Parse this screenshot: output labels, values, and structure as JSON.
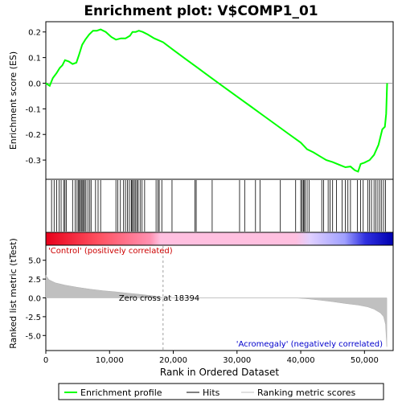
{
  "chart_data": {
    "type": "line",
    "title": "Enrichment plot: V$COMP1_01",
    "xlabel": "Rank in Ordered Dataset",
    "xlim": [
      0,
      54500
    ],
    "x_ticks": [
      0,
      10000,
      20000,
      30000,
      40000,
      50000
    ],
    "x_tick_labels": [
      "0",
      "10,000",
      "20,000",
      "30,000",
      "40,000",
      "50,000"
    ],
    "es_panel": {
      "ylabel": "Enrichment score (ES)",
      "ylim": [
        -0.375,
        0.24
      ],
      "y_ticks": [
        0.2,
        0.1,
        0.0,
        -0.1,
        -0.2,
        -0.3
      ],
      "y_tick_labels": [
        "0.2",
        "0.1",
        "0.0",
        "-0.1",
        "-0.2",
        "-0.3"
      ],
      "series_color": "#00ff00",
      "points": [
        [
          0,
          0
        ],
        [
          600,
          -0.01
        ],
        [
          1100,
          0.02
        ],
        [
          1700,
          0.04
        ],
        [
          2200,
          0.06
        ],
        [
          2600,
          0.07
        ],
        [
          3000,
          0.09
        ],
        [
          3600,
          0.085
        ],
        [
          4200,
          0.075
        ],
        [
          4800,
          0.08
        ],
        [
          5200,
          0.11
        ],
        [
          5700,
          0.15
        ],
        [
          6200,
          0.17
        ],
        [
          6800,
          0.19
        ],
        [
          7400,
          0.205
        ],
        [
          8000,
          0.205
        ],
        [
          8600,
          0.21
        ],
        [
          9400,
          0.2
        ],
        [
          10300,
          0.18
        ],
        [
          11000,
          0.17
        ],
        [
          11800,
          0.175
        ],
        [
          12500,
          0.175
        ],
        [
          13200,
          0.185
        ],
        [
          13600,
          0.2
        ],
        [
          14100,
          0.2
        ],
        [
          14600,
          0.205
        ],
        [
          15200,
          0.2
        ],
        [
          16000,
          0.19
        ],
        [
          17000,
          0.175
        ],
        [
          18394,
          0.16
        ],
        [
          20000,
          0.13
        ],
        [
          22000,
          0.093
        ],
        [
          24000,
          0.057
        ],
        [
          26000,
          0.02
        ],
        [
          28000,
          -0.016
        ],
        [
          30000,
          -0.052
        ],
        [
          32000,
          -0.088
        ],
        [
          34000,
          -0.124
        ],
        [
          36000,
          -0.16
        ],
        [
          38000,
          -0.196
        ],
        [
          40000,
          -0.232
        ],
        [
          41000,
          -0.258
        ],
        [
          42000,
          -0.27
        ],
        [
          43000,
          -0.285
        ],
        [
          44000,
          -0.3
        ],
        [
          45000,
          -0.308
        ],
        [
          46000,
          -0.318
        ],
        [
          47000,
          -0.328
        ],
        [
          47800,
          -0.325
        ],
        [
          48500,
          -0.34
        ],
        [
          49000,
          -0.345
        ],
        [
          49400,
          -0.315
        ],
        [
          50000,
          -0.31
        ],
        [
          50800,
          -0.3
        ],
        [
          51500,
          -0.28
        ],
        [
          52200,
          -0.24
        ],
        [
          52800,
          -0.18
        ],
        [
          53200,
          -0.17
        ],
        [
          53400,
          -0.12
        ],
        [
          53500,
          -0.04
        ],
        [
          53550,
          0
        ]
      ]
    },
    "hits_panel": {
      "hit_color": "#000000",
      "hit_positions": [
        900,
        1300,
        1700,
        2100,
        2400,
        2800,
        3000,
        3200,
        4200,
        4600,
        4900,
        5100,
        5300,
        5400,
        5600,
        5800,
        5900,
        6100,
        6300,
        6600,
        6900,
        7100,
        7800,
        8200,
        8600,
        11000,
        11300,
        11700,
        12200,
        12500,
        12800,
        13100,
        13400,
        13500,
        13700,
        13900,
        14100,
        14300,
        14500,
        14800,
        15100,
        15500,
        17300,
        17600,
        17800,
        18200,
        19800,
        23400,
        23600,
        26100,
        30400,
        31200,
        32900,
        33600,
        36800,
        39200,
        40000,
        40200,
        40400,
        40500,
        40700,
        41000,
        41300,
        43300,
        43600,
        44300,
        44600,
        45000,
        45600,
        46500,
        47000,
        47400,
        47800,
        48900,
        49400,
        49800,
        50500,
        50800,
        51100,
        51500,
        51800,
        52100,
        52400,
        52700,
        53000,
        53300
      ]
    },
    "metric_panel": {
      "ylabel": "Ranked list metric (tTest)",
      "ylim": [
        -7,
        7
      ],
      "y_ticks": [
        5.0,
        2.5,
        0.0,
        -2.5,
        -5.0
      ],
      "y_tick_labels": [
        "5.0",
        "2.5",
        "0.0",
        "-2.5",
        "-5.0"
      ],
      "fill_color": "#c0c0c0",
      "points": [
        [
          0,
          3.0
        ],
        [
          500,
          2.4
        ],
        [
          1500,
          2.0
        ],
        [
          3000,
          1.7
        ],
        [
          5000,
          1.4
        ],
        [
          7000,
          1.15
        ],
        [
          9000,
          0.95
        ],
        [
          11000,
          0.8
        ],
        [
          13000,
          0.62
        ],
        [
          15000,
          0.45
        ],
        [
          17000,
          0.25
        ],
        [
          18394,
          0
        ],
        [
          20000,
          0
        ],
        [
          39000,
          0
        ],
        [
          41000,
          -0.12
        ],
        [
          43000,
          -0.3
        ],
        [
          45000,
          -0.5
        ],
        [
          47000,
          -0.75
        ],
        [
          49000,
          -0.95
        ],
        [
          50500,
          -1.2
        ],
        [
          51500,
          -1.5
        ],
        [
          52500,
          -2.0
        ],
        [
          53000,
          -2.5
        ],
        [
          53300,
          -3.5
        ],
        [
          53500,
          -6.5
        ]
      ],
      "zero_cross_label": "Zero cross at 18394",
      "zero_cross_x": 18394,
      "positive_label": "'Control' (positively correlated)",
      "negative_label": "'Acromegaly' (negatively correlated)"
    },
    "legend": {
      "placement": "bottom",
      "entries": [
        {
          "label": "Enrichment profile",
          "color": "#00ff00"
        },
        {
          "label": "Hits",
          "color": "#000000"
        },
        {
          "label": "Ranking metric scores",
          "color": "#c0c0c0"
        }
      ]
    }
  }
}
